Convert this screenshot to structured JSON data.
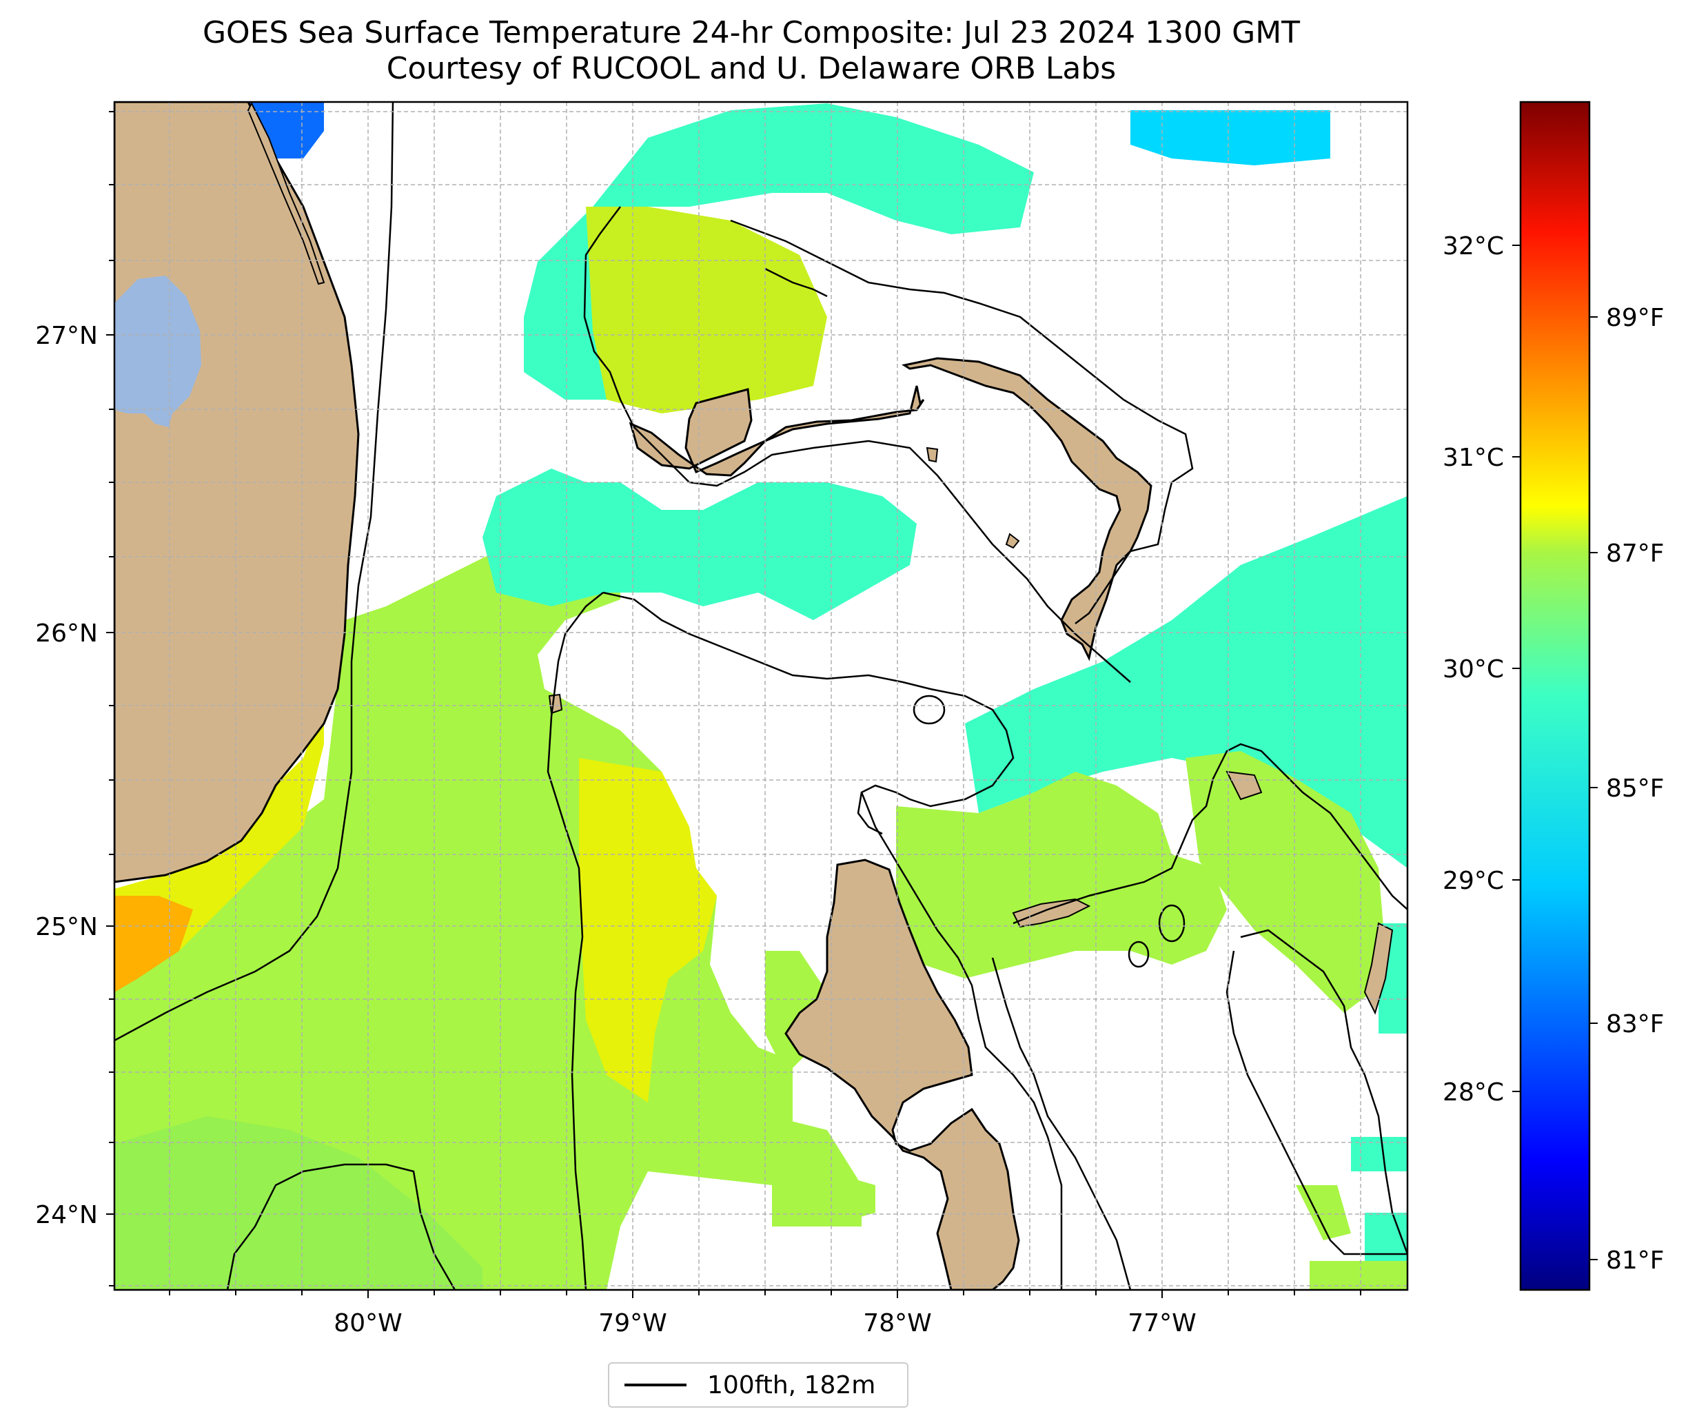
{
  "title": "GOES Sea Surface Temperature 24-hr Composite: Jul 23 2024 1300 GMT",
  "subtitle": "Courtesy of RUCOOL and U. Delaware ORB Labs",
  "lat_ticks": [
    "27°N",
    "26°N",
    "25°N",
    "24°N"
  ],
  "lon_ticks": [
    "80°W",
    "79°W",
    "78°W",
    "77°W"
  ],
  "colorbar": {
    "celsius_ticks": [
      "32°C",
      "31°C",
      "30°C",
      "29°C",
      "28°C"
    ],
    "fahrenheit_ticks": [
      "89°F",
      "87°F",
      "85°F",
      "83°F",
      "81°F"
    ],
    "colormap": "jet"
  },
  "legend": {
    "label": "100fth, 182m"
  },
  "colors": {
    "land": "#d2b48c",
    "lake": "#9ab8e0",
    "grid": "#b0b0b0",
    "sst_warm": "#e6f20a",
    "sst_mid": "#a8f545",
    "sst_cool": "#3cffc4",
    "sst_cold": "#00d8ff",
    "sst_coldest": "#0a6cff",
    "sst_hot": "#ffb000"
  }
}
